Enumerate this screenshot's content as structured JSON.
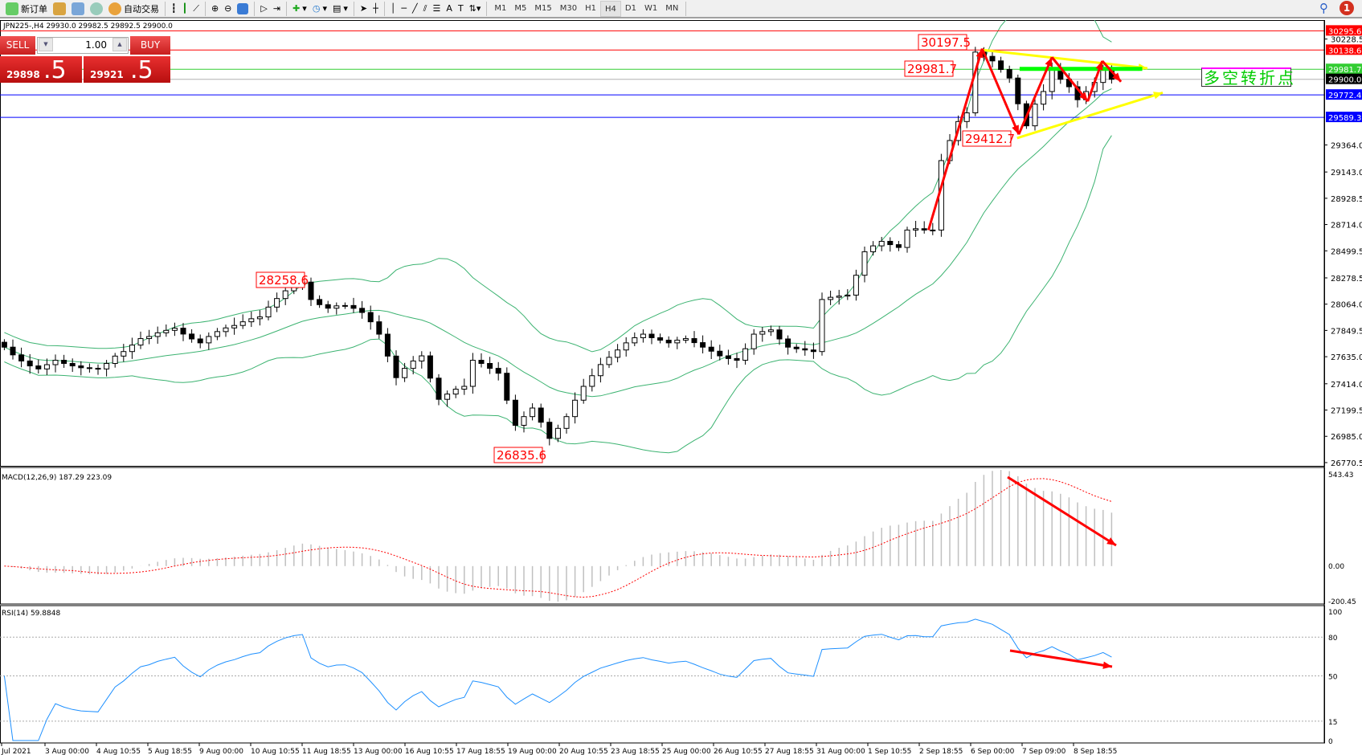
{
  "toolbar": {
    "new_order": "新订单",
    "auto_trade": "自动交易",
    "timeframes": [
      "M1",
      "M5",
      "M15",
      "M30",
      "H1",
      "H4",
      "D1",
      "W1",
      "MN"
    ],
    "active_timeframe": "H4",
    "notifications": "1"
  },
  "chart": {
    "title": "JPN225-,H4  29930.0 29982.5 29892.5 29900.0",
    "trade_panel": {
      "sell": "SELL",
      "buy": "BUY",
      "lot": "1.00",
      "sell_big": "29898",
      "sell_frac": ".5",
      "buy_big": "29921",
      "buy_frac": ".5"
    },
    "note": "多空转折点",
    "macd_label": "MACD(12,26,9) 187.29 223.09",
    "rsi_label": "RSI(14) 59.8848"
  },
  "chart_data": {
    "type": "candlestick",
    "price_ticks": [
      "30228.5",
      "29364.0",
      "29143.0",
      "28928.5",
      "28714.0",
      "28499.5",
      "28278.5",
      "28064.0",
      "27849.5",
      "27635.0",
      "27414.0",
      "27199.5",
      "26985.0",
      "26770.5"
    ],
    "price_range": [
      26770.5,
      30228.5
    ],
    "levels": [
      {
        "price": "30295.6",
        "color": "#ff0000"
      },
      {
        "price": "30138.6",
        "color": "#ff0000"
      },
      {
        "price": "29981.7",
        "color": "#32cd32"
      },
      {
        "price": "29900.0",
        "color": "#000000"
      },
      {
        "price": "29772.4",
        "color": "#0000ff"
      },
      {
        "price": "29589.3",
        "color": "#0000ff"
      }
    ],
    "price_labels": [
      "30197.5",
      "29981.7",
      "29412.7",
      "28258.6",
      "26835.6"
    ],
    "time_labels": [
      "Jul 2021",
      "3 Aug 00:00",
      "4 Aug 10:55",
      "5 Aug 18:55",
      "9 Aug 00:00",
      "10 Aug 10:55",
      "11 Aug 18:55",
      "13 Aug 00:00",
      "16 Aug 10:55",
      "17 Aug 18:55",
      "19 Aug 00:00",
      "20 Aug 10:55",
      "23 Aug 18:55",
      "25 Aug 00:00",
      "26 Aug 10:55",
      "27 Aug 18:55",
      "31 Aug 00:00",
      "1 Sep 10:55",
      "2 Sep 18:55",
      "6 Sep 00:00",
      "7 Sep 09:00",
      "8 Sep 18:55"
    ],
    "closes": [
      27713,
      27650,
      27600,
      27560,
      27535,
      27570,
      27606,
      27580,
      27560,
      27545,
      27540,
      27535,
      27580,
      27640,
      27677,
      27730,
      27783,
      27800,
      27830,
      27850,
      27868,
      27820,
      27780,
      27748,
      27800,
      27840,
      27870,
      27890,
      27920,
      27945,
      27960,
      28040,
      28110,
      28173,
      28220,
      28244,
      28102,
      28060,
      28031,
      28050,
      28053,
      28030,
      27996,
      27920,
      27819,
      27640,
      27464,
      27540,
      27600,
      27642,
      27460,
      27287,
      27330,
      27370,
      27393,
      27606,
      27580,
      27540,
      27500,
      27280,
      27075,
      27146,
      27216,
      27100,
      26968,
      27050,
      27146,
      27280,
      27393,
      27480,
      27571,
      27630,
      27690,
      27748,
      27790,
      27819,
      27790,
      27770,
      27748,
      27770,
      27783,
      27750,
      27713,
      27680,
      27642,
      27620,
      27606,
      27700,
      27819,
      27840,
      27854,
      27780,
      27713,
      27700,
      27690,
      27677,
      28102,
      28120,
      28130,
      28138,
      28300,
      28492,
      28540,
      28577,
      28550,
      28527,
      28669,
      28680,
      28669,
      28669,
      29236,
      29400,
      29555,
      29626,
      30122,
      30087,
      30050,
      29980,
      29910,
      29700,
      29520,
      29697,
      29800,
      29980,
      29900,
      29839,
      29733,
      29800,
      29874,
      29980,
      29900
    ],
    "indicators": {
      "bollinger": "20,2",
      "macd": {
        "params": "12,26,9",
        "range": [
          "-200.45",
          "0.00",
          "543.43"
        ]
      },
      "rsi": {
        "period": 14,
        "ticks": [
          "100",
          "80",
          "50",
          "15",
          "0"
        ]
      }
    },
    "colors": {
      "bands": "#3cb371",
      "macd_signal": "#ff0000",
      "macd_hist": "#c0c0c0",
      "rsi": "#1e90ff",
      "arrows": "#ff0000",
      "trend": "#ffff00",
      "pivot": "#00ff00"
    }
  }
}
